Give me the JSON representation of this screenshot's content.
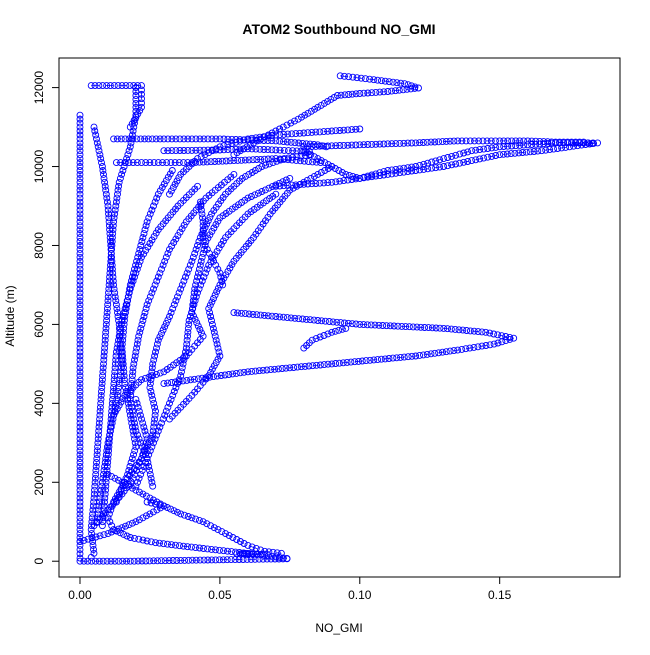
{
  "chart_data": {
    "type": "scatter",
    "title": "ATOM2 Southbound NO_GMI",
    "xlabel": "NO_GMI",
    "ylabel": "Altitude (m)",
    "xlim": [
      -0.0075,
      0.193
    ],
    "ylim": [
      -400,
      12750
    ],
    "x_ticks": [
      0.0,
      0.05,
      0.1,
      0.15
    ],
    "x_tick_labels": [
      "0.00",
      "0.05",
      "0.10",
      "0.15"
    ],
    "y_ticks": [
      0,
      2000,
      4000,
      6000,
      8000,
      10000,
      12000
    ],
    "y_tick_labels": [
      "0",
      "2000",
      "4000",
      "6000",
      "8000",
      "10000",
      "12000"
    ],
    "marker": "open-circle",
    "line_style": "dashed",
    "color": "#0000ff",
    "grid": false,
    "series": [
      {
        "points": [
          [
            0.074,
            70
          ],
          [
            0.066,
            150
          ],
          [
            0.057,
            220
          ],
          [
            0.047,
            300
          ],
          [
            0.037,
            380
          ],
          [
            0.027,
            470
          ],
          [
            0.018,
            600
          ],
          [
            0.012,
            800
          ],
          [
            0.01,
            1100
          ],
          [
            0.012,
            1500
          ],
          [
            0.016,
            2000
          ],
          [
            0.022,
            2600
          ],
          [
            0.026,
            3200
          ],
          [
            0.027,
            3800
          ],
          [
            0.025,
            4400
          ],
          [
            0.026,
            5000
          ],
          [
            0.028,
            5600
          ],
          [
            0.032,
            6200
          ],
          [
            0.036,
            6900
          ],
          [
            0.04,
            7600
          ],
          [
            0.043,
            8200
          ],
          [
            0.047,
            8800
          ],
          [
            0.052,
            9300
          ],
          [
            0.058,
            9700
          ],
          [
            0.065,
            10000
          ],
          [
            0.073,
            10200
          ],
          [
            0.082,
            10300
          ]
        ]
      },
      {
        "points": [
          [
            0.02,
            12000
          ],
          [
            0.02,
            11300
          ],
          [
            0.018,
            10500
          ],
          [
            0.014,
            9600
          ],
          [
            0.012,
            8600
          ],
          [
            0.011,
            7600
          ],
          [
            0.01,
            6600
          ],
          [
            0.009,
            5600
          ],
          [
            0.008,
            4600
          ],
          [
            0.007,
            3600
          ],
          [
            0.006,
            2600
          ],
          [
            0.005,
            1600
          ],
          [
            0.004,
            800
          ],
          [
            0.005,
            200
          ],
          [
            0.004,
            100
          ]
        ]
      },
      {
        "points": [
          [
            0.0,
            11300
          ],
          [
            0.0,
            10000
          ],
          [
            0.0,
            8500
          ],
          [
            0.0,
            7000
          ],
          [
            0.0,
            5500
          ],
          [
            0.0,
            4000
          ],
          [
            0.0,
            2500
          ],
          [
            0.0,
            1200
          ],
          [
            0.0,
            400
          ],
          [
            0.0,
            80
          ]
        ]
      },
      {
        "points": [
          [
            0.012,
            10700
          ],
          [
            0.03,
            10700
          ],
          [
            0.05,
            10700
          ],
          [
            0.07,
            10650
          ],
          [
            0.085,
            10550
          ],
          [
            0.088,
            10500
          ]
        ]
      },
      {
        "points": [
          [
            0.075,
            9700
          ],
          [
            0.06,
            9200
          ],
          [
            0.05,
            8700
          ],
          [
            0.045,
            8100
          ],
          [
            0.043,
            7500
          ],
          [
            0.041,
            6900
          ],
          [
            0.04,
            6300
          ],
          [
            0.044,
            5700
          ],
          [
            0.038,
            5200
          ],
          [
            0.03,
            4800
          ],
          [
            0.022,
            4600
          ],
          [
            0.016,
            4200
          ],
          [
            0.012,
            3700
          ]
        ]
      },
      {
        "points": [
          [
            0.09,
            10000
          ],
          [
            0.075,
            9400
          ],
          [
            0.068,
            8800
          ],
          [
            0.062,
            8200
          ],
          [
            0.055,
            7600
          ],
          [
            0.05,
            7000
          ],
          [
            0.046,
            6400
          ],
          [
            0.048,
            5800
          ],
          [
            0.05,
            5200
          ],
          [
            0.046,
            4700
          ],
          [
            0.04,
            4200
          ],
          [
            0.032,
            3600
          ]
        ]
      },
      {
        "points": [
          [
            0.055,
            9800
          ],
          [
            0.045,
            9200
          ],
          [
            0.038,
            8600
          ],
          [
            0.032,
            7900
          ],
          [
            0.028,
            7200
          ],
          [
            0.024,
            6500
          ],
          [
            0.021,
            5700
          ],
          [
            0.019,
            4900
          ],
          [
            0.018,
            4100
          ],
          [
            0.02,
            3300
          ],
          [
            0.024,
            2600
          ],
          [
            0.026,
            1900
          ]
        ]
      },
      {
        "points": [
          [
            0.042,
            9500
          ],
          [
            0.035,
            9000
          ],
          [
            0.028,
            8400
          ],
          [
            0.022,
            7700
          ],
          [
            0.018,
            6900
          ],
          [
            0.015,
            6100
          ],
          [
            0.013,
            5300
          ],
          [
            0.012,
            4400
          ],
          [
            0.011,
            3500
          ],
          [
            0.01,
            2600
          ],
          [
            0.009,
            1700
          ],
          [
            0.008,
            900
          ]
        ]
      },
      {
        "points": [
          [
            0.033,
            9900
          ],
          [
            0.028,
            9300
          ],
          [
            0.024,
            8600
          ],
          [
            0.021,
            7800
          ],
          [
            0.018,
            7000
          ],
          [
            0.016,
            6200
          ],
          [
            0.015,
            5400
          ],
          [
            0.016,
            4500
          ],
          [
            0.018,
            3700
          ],
          [
            0.02,
            2900
          ],
          [
            0.017,
            2200
          ],
          [
            0.013,
            1500
          ]
        ]
      },
      {
        "points": [
          [
            0.07,
            9300
          ],
          [
            0.06,
            8800
          ],
          [
            0.052,
            8200
          ],
          [
            0.046,
            7500
          ],
          [
            0.042,
            6800
          ],
          [
            0.039,
            6100
          ],
          [
            0.038,
            5400
          ],
          [
            0.036,
            4700
          ],
          [
            0.032,
            4000
          ],
          [
            0.028,
            3300
          ],
          [
            0.024,
            2600
          ],
          [
            0.02,
            1900
          ]
        ]
      },
      {
        "points": [
          [
            0.004,
            12050
          ],
          [
            0.015,
            12050
          ],
          [
            0.022,
            12050
          ],
          [
            0.022,
            11500
          ],
          [
            0.018,
            11000
          ]
        ]
      },
      {
        "points": [
          [
            0.005,
            11000
          ],
          [
            0.008,
            10000
          ],
          [
            0.01,
            9000
          ],
          [
            0.011,
            8000
          ],
          [
            0.012,
            7000
          ],
          [
            0.014,
            6000
          ],
          [
            0.015,
            5000
          ],
          [
            0.013,
            4000
          ],
          [
            0.01,
            3000
          ],
          [
            0.008,
            2000
          ],
          [
            0.006,
            1000
          ]
        ]
      },
      {
        "points": [
          [
            0.093,
            12300
          ],
          [
            0.105,
            12200
          ],
          [
            0.116,
            12100
          ],
          [
            0.121,
            11990
          ],
          [
            0.11,
            11900
          ],
          [
            0.1,
            11850
          ],
          [
            0.092,
            11800
          ],
          [
            0.085,
            11500
          ],
          [
            0.078,
            11200
          ],
          [
            0.07,
            10900
          ],
          [
            0.062,
            10600
          ],
          [
            0.055,
            10300
          ]
        ]
      },
      {
        "points": [
          [
            0.1,
            10950
          ],
          [
            0.09,
            10900
          ],
          [
            0.08,
            10850
          ],
          [
            0.07,
            10800
          ],
          [
            0.06,
            10700
          ],
          [
            0.05,
            10500
          ],
          [
            0.042,
            10200
          ],
          [
            0.036,
            9800
          ],
          [
            0.032,
            9300
          ]
        ]
      },
      {
        "points": [
          [
            0.0,
            0
          ],
          [
            0.018,
            0
          ],
          [
            0.036,
            20
          ],
          [
            0.054,
            40
          ],
          [
            0.074,
            60
          ]
        ]
      },
      {
        "points": [
          [
            0.08,
            10400
          ],
          [
            0.09,
            10000
          ],
          [
            0.095,
            9800
          ],
          [
            0.1,
            9700
          ],
          [
            0.11,
            9900
          ],
          [
            0.12,
            10000
          ],
          [
            0.13,
            10200
          ],
          [
            0.14,
            10400
          ],
          [
            0.15,
            10500
          ],
          [
            0.16,
            10550
          ],
          [
            0.17,
            10600
          ],
          [
            0.18,
            10600
          ],
          [
            0.185,
            10600
          ],
          [
            0.175,
            10500
          ],
          [
            0.165,
            10400
          ],
          [
            0.15,
            10300
          ],
          [
            0.13,
            10000
          ],
          [
            0.11,
            9800
          ],
          [
            0.09,
            9600
          ],
          [
            0.07,
            9500
          ]
        ]
      },
      {
        "points": [
          [
            0.08,
            10500
          ],
          [
            0.1,
            10550
          ],
          [
            0.12,
            10600
          ],
          [
            0.135,
            10650
          ],
          [
            0.15,
            10650
          ],
          [
            0.16,
            10650
          ],
          [
            0.17,
            10620
          ],
          [
            0.18,
            10620
          ],
          [
            0.183,
            10580
          ]
        ]
      },
      {
        "points": [
          [
            0.055,
            6300
          ],
          [
            0.07,
            6200
          ],
          [
            0.085,
            6100
          ],
          [
            0.1,
            6000
          ],
          [
            0.115,
            5950
          ],
          [
            0.13,
            5900
          ],
          [
            0.145,
            5800
          ],
          [
            0.155,
            5650
          ],
          [
            0.148,
            5500
          ],
          [
            0.135,
            5350
          ],
          [
            0.12,
            5200
          ],
          [
            0.105,
            5100
          ],
          [
            0.09,
            5000
          ],
          [
            0.075,
            4900
          ],
          [
            0.06,
            4800
          ],
          [
            0.045,
            4650
          ],
          [
            0.03,
            4500
          ]
        ]
      },
      {
        "points": [
          [
            0.08,
            5400
          ],
          [
            0.083,
            5600
          ],
          [
            0.09,
            5800
          ],
          [
            0.095,
            5900
          ]
        ]
      },
      {
        "points": [
          [
            0.0,
            500
          ],
          [
            0.01,
            700
          ],
          [
            0.02,
            1000
          ],
          [
            0.03,
            1400
          ],
          [
            0.02,
            1800
          ],
          [
            0.01,
            2200
          ]
        ]
      },
      {
        "points": [
          [
            0.024,
            1500
          ],
          [
            0.03,
            1400
          ],
          [
            0.036,
            1200
          ],
          [
            0.044,
            1000
          ],
          [
            0.052,
            700
          ],
          [
            0.06,
            400
          ],
          [
            0.066,
            250
          ],
          [
            0.072,
            200
          ]
        ]
      },
      {
        "points": [
          [
            0.058,
            200
          ],
          [
            0.062,
            190
          ],
          [
            0.065,
            180
          ],
          [
            0.06,
            170
          ],
          [
            0.056,
            190
          ]
        ]
      },
      {
        "points": [
          [
            0.013,
            10100
          ],
          [
            0.025,
            10100
          ],
          [
            0.04,
            10100
          ],
          [
            0.055,
            10150
          ],
          [
            0.07,
            10200
          ],
          [
            0.086,
            10100
          ]
        ]
      },
      {
        "points": [
          [
            0.03,
            10400
          ],
          [
            0.05,
            10420
          ],
          [
            0.06,
            10450
          ],
          [
            0.07,
            10420
          ],
          [
            0.082,
            10380
          ]
        ]
      },
      {
        "points": [
          [
            0.043,
            9100
          ],
          [
            0.044,
            8600
          ],
          [
            0.044,
            8100
          ],
          [
            0.047,
            7700
          ],
          [
            0.05,
            7300
          ],
          [
            0.051,
            7000
          ]
        ]
      },
      {
        "points": [
          [
            0.02,
            4100
          ],
          [
            0.022,
            3600
          ],
          [
            0.024,
            3100
          ],
          [
            0.022,
            2600
          ],
          [
            0.019,
            2100
          ],
          [
            0.015,
            1700
          ],
          [
            0.01,
            1300
          ],
          [
            0.005,
            900
          ]
        ]
      }
    ]
  }
}
